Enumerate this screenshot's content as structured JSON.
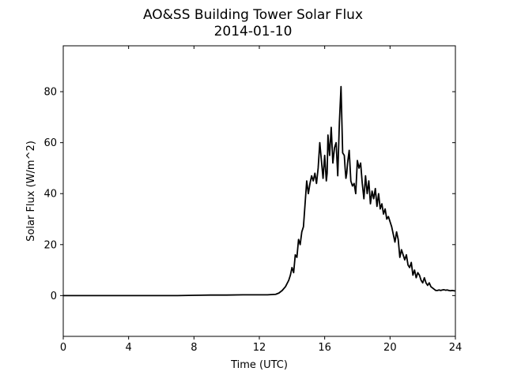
{
  "chart_data": {
    "type": "line",
    "title": "AO&SS Building Tower Solar Flux",
    "subtitle": "2014-01-10",
    "xlabel": "Time (UTC)",
    "ylabel": "Solar Flux (W/m^2)",
    "xlim": [
      0,
      24
    ],
    "ylim": [
      -16,
      98
    ],
    "xticks": [
      0,
      4,
      8,
      12,
      16,
      20,
      24
    ],
    "yticks": [
      0,
      20,
      40,
      60,
      80
    ],
    "grid": false,
    "legend": "none",
    "series": [
      {
        "color": "#000000",
        "x": [
          0,
          1,
          2,
          3,
          4,
          5,
          6,
          7,
          8,
          9,
          10,
          11,
          12,
          12.5,
          13.0,
          13.2,
          13.4,
          13.6,
          13.8,
          13.9,
          14.0,
          14.1,
          14.2,
          14.3,
          14.4,
          14.5,
          14.6,
          14.7,
          14.8,
          14.9,
          15.0,
          15.1,
          15.2,
          15.3,
          15.4,
          15.5,
          15.6,
          15.7,
          15.8,
          15.9,
          16.0,
          16.1,
          16.15,
          16.2,
          16.3,
          16.4,
          16.5,
          16.6,
          16.7,
          16.8,
          16.9,
          17.0,
          17.1,
          17.2,
          17.25,
          17.3,
          17.35,
          17.4,
          17.5,
          17.6,
          17.7,
          17.8,
          17.9,
          18.0,
          18.1,
          18.2,
          18.3,
          18.4,
          18.5,
          18.6,
          18.7,
          18.8,
          18.9,
          19.0,
          19.1,
          19.2,
          19.3,
          19.4,
          19.5,
          19.6,
          19.7,
          19.8,
          19.9,
          20.0,
          20.1,
          20.2,
          20.3,
          20.4,
          20.5,
          20.6,
          20.7,
          20.8,
          20.9,
          21.0,
          21.1,
          21.2,
          21.3,
          21.4,
          21.5,
          21.6,
          21.7,
          21.8,
          21.9,
          22.0,
          22.1,
          22.2,
          22.3,
          22.4,
          22.5,
          22.6,
          22.7,
          22.8,
          22.9,
          23.0,
          23.1,
          23.2,
          23.3,
          23.4,
          23.5,
          23.6,
          23.7,
          23.8,
          24.0
        ],
        "y": [
          0,
          0,
          0,
          0,
          0,
          0,
          0,
          0,
          0.1,
          0.2,
          0.2,
          0.3,
          0.3,
          0.3,
          0.5,
          1.0,
          2.0,
          3.5,
          6,
          8,
          11,
          9,
          16,
          15,
          22,
          20,
          25,
          27,
          36,
          45,
          40,
          44,
          47,
          45,
          48,
          44,
          50,
          60,
          53,
          46,
          55,
          45,
          48,
          63,
          55,
          66,
          52,
          58,
          60,
          47,
          68,
          82,
          56,
          55,
          50,
          46,
          48,
          52,
          57,
          45,
          43,
          44,
          40,
          53,
          50,
          52,
          44,
          38,
          47,
          40,
          45,
          36,
          41,
          38,
          42,
          35,
          40,
          34,
          36,
          32,
          34,
          30,
          31,
          29,
          27,
          24,
          21,
          25,
          22,
          15,
          18,
          16,
          14,
          16,
          12,
          11,
          13,
          8,
          10,
          7,
          9,
          8,
          6,
          5,
          7,
          5,
          4,
          5,
          3.5,
          3,
          2.5,
          2.0,
          2.0,
          2.2,
          2.0,
          2.2,
          2.3,
          2.1,
          2.2,
          2.0,
          1.9,
          2.0,
          1.8
        ]
      }
    ]
  }
}
